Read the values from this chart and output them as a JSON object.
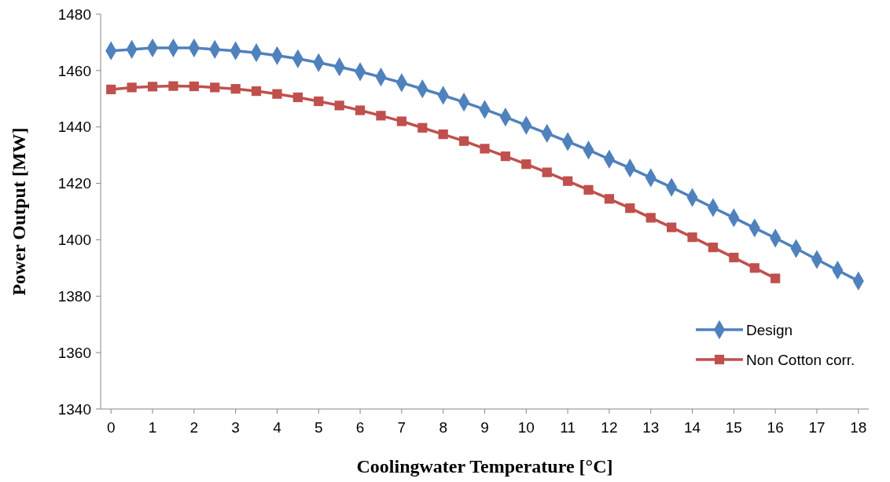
{
  "chart_data": {
    "type": "line",
    "xlabel": "Coolingwater Temperature [°C]",
    "ylabel": "Power Output [MW]",
    "x": [
      0,
      0.5,
      1,
      1.5,
      2,
      2.5,
      3,
      3.5,
      4,
      4.5,
      5,
      5.5,
      6,
      6.5,
      7,
      7.5,
      8,
      8.5,
      9,
      9.5,
      10,
      10.5,
      11,
      11.5,
      12,
      12.5,
      13,
      13.5,
      14,
      14.5,
      15,
      15.5,
      16,
      16.5,
      17,
      17.5,
      18
    ],
    "xlim": [
      -0.25,
      18.25
    ],
    "xticks": [
      0,
      1,
      2,
      3,
      4,
      5,
      6,
      7,
      8,
      9,
      10,
      11,
      12,
      13,
      14,
      15,
      16,
      17,
      18
    ],
    "ylim": [
      1340,
      1480
    ],
    "yticks": [
      1340,
      1360,
      1380,
      1400,
      1420,
      1440,
      1460,
      1480
    ],
    "grid": false,
    "legend": "bottom right",
    "line_style": "solid",
    "series": [
      {
        "name": "Design",
        "color": "#4f81bd",
        "marker": "diamond",
        "values": [
          1467,
          1467.5,
          1468,
          1468,
          1468,
          1467.5,
          1467,
          1466.3,
          1465.3,
          1464.2,
          1462.8,
          1461.3,
          1459.6,
          1457.7,
          1455.7,
          1453.5,
          1451.2,
          1448.8,
          1446.2,
          1443.5,
          1440.6,
          1437.7,
          1434.8,
          1431.8,
          1428.6,
          1425.4,
          1422,
          1418.6,
          1415,
          1411.4,
          1407.8,
          1404.2,
          1400.6,
          1396.9,
          1393,
          1389.2,
          1385.4
        ]
      },
      {
        "name": "Non Cotton corr.",
        "color": "#c0504d",
        "marker": "square",
        "values": [
          1453.3,
          1454,
          1454.3,
          1454.5,
          1454.4,
          1454,
          1453.5,
          1452.7,
          1451.7,
          1450.5,
          1449.1,
          1447.6,
          1445.9,
          1444,
          1442,
          1439.7,
          1437.4,
          1435,
          1432.3,
          1429.6,
          1426.8,
          1423.9,
          1420.8,
          1417.7,
          1414.5,
          1411.2,
          1407.8,
          1404.4,
          1400.9,
          1397.3,
          1393.7,
          1390,
          1386.3,
          null,
          null,
          null,
          null
        ]
      }
    ]
  }
}
